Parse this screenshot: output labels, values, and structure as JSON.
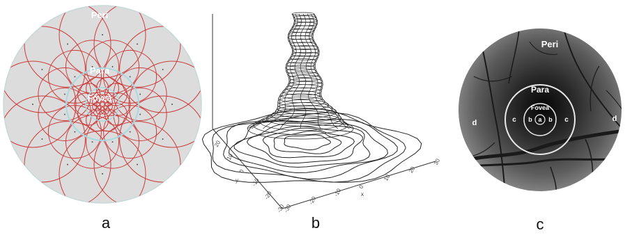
{
  "panel_a": {
    "labels": {
      "outer": "Peri",
      "middle": "Para",
      "inner": "Fovea"
    },
    "colors": {
      "background": "#dcdcdc",
      "circles": "#cc3a3a",
      "ring": "#a8d8e0"
    }
  },
  "panel_b": {
    "ticks_left": [
      "20",
      "10",
      "0",
      "-10",
      "-20",
      "-30"
    ],
    "ticks_right": [
      "-30",
      "-20",
      "-10",
      "0",
      "10",
      "20",
      "30"
    ],
    "axis_left": "y",
    "axis_right": "x"
  },
  "panel_c": {
    "labels": {
      "outer": "Peri",
      "middle": "Para",
      "inner": "Fovea",
      "a": "a",
      "b": "b",
      "c": "c",
      "d": "d"
    },
    "colors": {
      "fundus": "#3a3a3a",
      "rings": "#e8e8e8"
    }
  },
  "captions": {
    "a": "a",
    "b": "b",
    "c": "c"
  }
}
